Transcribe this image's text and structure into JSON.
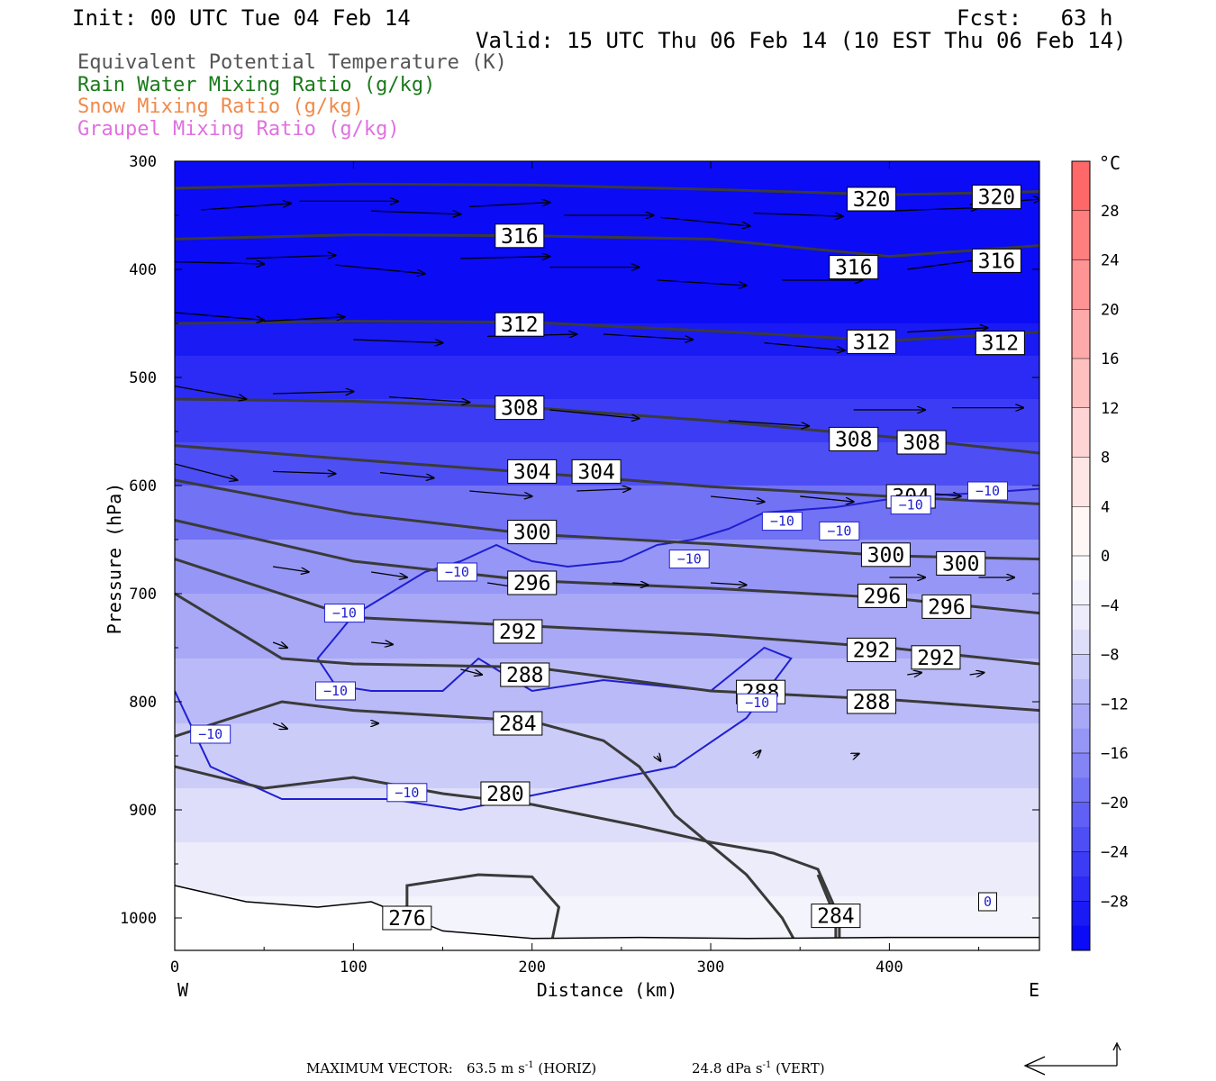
{
  "header": {
    "init": "Init: 00 UTC Tue 04 Feb 14",
    "fcst": "Fcst:   63 h",
    "valid": "Valid: 15 UTC Thu 06 Feb 14 (10 EST Thu 06 Feb 14)",
    "fields": [
      {
        "label": "Equivalent Potential Temperature (K)",
        "color": "#555555"
      },
      {
        "label": "Rain Water Mixing Ratio (g/kg)",
        "color": "#1a7a1a"
      },
      {
        "label": "Snow Mixing Ratio (g/kg)",
        "color": "#f08a4a"
      },
      {
        "label": "Graupel Mixing Ratio (g/kg)",
        "color": "#e070e0"
      }
    ]
  },
  "footer": {
    "max_vector_label": "MAXIMUM VECTOR:",
    "horiz_value": "63.5 m s",
    "horiz_unit": "(HORIZ)",
    "vert_value": "24.8 dPa s",
    "vert_unit": "(VERT)",
    "exponent": "-1"
  },
  "chart_data": {
    "type": "contour cross-section",
    "xlabel": "Distance (km)",
    "ylabel": "Pressure (hPa)",
    "x_range": [
      0,
      484
    ],
    "y_range": [
      300,
      1030
    ],
    "y_scale": "linear, inverted",
    "x_ticks": [
      0,
      100,
      200,
      300,
      400
    ],
    "y_ticks": [
      300,
      400,
      500,
      600,
      700,
      800,
      900,
      1000
    ],
    "x_end_labels": {
      "left": "W",
      "right": "E"
    },
    "colorbar": {
      "unit": "°C",
      "tick_labels": [
        "28",
        "24",
        "20",
        "16",
        "12",
        "8",
        "4",
        "0",
        "-4",
        "-8",
        "-12",
        "-16",
        "-20",
        "-24",
        "-28"
      ],
      "range": [
        -32,
        32
      ],
      "step": 4,
      "colors_neg": [
        "#0b0bf5",
        "#1a1af5",
        "#2b2bf5",
        "#3c3cf5",
        "#4e4ef5",
        "#6060f5",
        "#7272f5",
        "#8484f5",
        "#9696f6",
        "#a8a8f7",
        "#babaf8",
        "#ccccf9",
        "#dedefa",
        "#ececfb",
        "#f4f4fc",
        "#fbfbfe"
      ],
      "colors_pos": [
        "#fff6f6",
        "#ffe6e6",
        "#ffd4d4",
        "#ffc0c0",
        "#ffaaaa",
        "#ff9494",
        "#ff7e7e",
        "#ff6868",
        "#ff5252",
        "#ff3d3d",
        "#ff2a2a",
        "#ff1818"
      ]
    },
    "temperature_fill_levels": [
      {
        "p": 300,
        "t": -32
      },
      {
        "p": 410,
        "t": -31
      },
      {
        "p": 450,
        "t": -29
      },
      {
        "p": 480,
        "t": -27
      },
      {
        "p": 520,
        "t": -25
      },
      {
        "p": 560,
        "t": -23
      },
      {
        "p": 600,
        "t": -20
      },
      {
        "p": 650,
        "t": -16
      },
      {
        "p": 700,
        "t": -13
      },
      {
        "p": 760,
        "t": -11
      },
      {
        "p": 820,
        "t": -9
      },
      {
        "p": 880,
        "t": -7
      },
      {
        "p": 930,
        "t": -5
      },
      {
        "p": 980,
        "t": -3
      },
      {
        "p": 1030,
        "t": -1
      }
    ],
    "theta_e_contours": [
      {
        "level": 320,
        "points": [
          [
            0,
            325
          ],
          [
            100,
            321
          ],
          [
            200,
            322
          ],
          [
            300,
            326
          ],
          [
            400,
            331
          ],
          [
            484,
            328
          ]
        ],
        "labels": [
          [
            390,
            335
          ],
          [
            460,
            333
          ]
        ]
      },
      {
        "level": 316,
        "points": [
          [
            0,
            372
          ],
          [
            100,
            368
          ],
          [
            200,
            369
          ],
          [
            300,
            372
          ],
          [
            400,
            388
          ],
          [
            484,
            378
          ]
        ],
        "labels": [
          [
            193,
            369
          ],
          [
            380,
            398
          ],
          [
            460,
            392
          ]
        ]
      },
      {
        "level": 312,
        "points": [
          [
            0,
            450
          ],
          [
            100,
            448
          ],
          [
            200,
            449
          ],
          [
            300,
            457
          ],
          [
            400,
            466
          ],
          [
            484,
            458
          ]
        ],
        "labels": [
          [
            193,
            451
          ],
          [
            390,
            467
          ],
          [
            462,
            468
          ]
        ]
      },
      {
        "level": 308,
        "points": [
          [
            0,
            520
          ],
          [
            100,
            522
          ],
          [
            200,
            528
          ],
          [
            300,
            540
          ],
          [
            400,
            555
          ],
          [
            484,
            570
          ]
        ],
        "labels": [
          [
            193,
            528
          ],
          [
            380,
            557
          ],
          [
            418,
            560
          ]
        ]
      },
      {
        "level": 304,
        "points": [
          [
            0,
            563
          ],
          [
            100,
            576
          ],
          [
            200,
            588
          ],
          [
            300,
            601
          ],
          [
            400,
            610
          ],
          [
            484,
            617
          ]
        ],
        "labels": [
          [
            200,
            587
          ],
          [
            236,
            587
          ],
          [
            412,
            610
          ]
        ]
      },
      {
        "level": 300,
        "points": [
          [
            0,
            595
          ],
          [
            100,
            626
          ],
          [
            200,
            645
          ],
          [
            300,
            654
          ],
          [
            400,
            665
          ],
          [
            484,
            668
          ]
        ],
        "labels": [
          [
            200,
            643
          ],
          [
            398,
            664
          ],
          [
            440,
            672
          ]
        ]
      },
      {
        "level": 296,
        "points": [
          [
            0,
            632
          ],
          [
            100,
            670
          ],
          [
            200,
            688
          ],
          [
            300,
            695
          ],
          [
            400,
            704
          ],
          [
            484,
            718
          ]
        ],
        "labels": [
          [
            200,
            690
          ],
          [
            396,
            702
          ],
          [
            432,
            712
          ]
        ]
      },
      {
        "level": 292,
        "points": [
          [
            0,
            668
          ],
          [
            100,
            722
          ],
          [
            200,
            730
          ],
          [
            300,
            738
          ],
          [
            400,
            750
          ],
          [
            484,
            765
          ]
        ],
        "labels": [
          [
            192,
            735
          ],
          [
            390,
            752
          ],
          [
            426,
            759
          ]
        ]
      },
      {
        "level": 288,
        "points": [
          [
            0,
            700
          ],
          [
            60,
            760
          ],
          [
            100,
            765
          ],
          [
            200,
            768
          ],
          [
            300,
            790
          ],
          [
            400,
            798
          ],
          [
            484,
            808
          ]
        ],
        "labels": [
          [
            196,
            775
          ],
          [
            328,
            791
          ],
          [
            390,
            800
          ]
        ]
      },
      {
        "level": 284,
        "points": [
          [
            0,
            832
          ],
          [
            60,
            800
          ],
          [
            100,
            808
          ],
          [
            200,
            818
          ],
          [
            240,
            836
          ],
          [
            260,
            860
          ],
          [
            280,
            905
          ],
          [
            320,
            960
          ],
          [
            340,
            1000
          ],
          [
            350,
            1030
          ]
        ],
        "labels": [
          [
            192,
            820
          ]
        ]
      },
      {
        "level": 280,
        "points": [
          [
            0,
            860
          ],
          [
            50,
            880
          ],
          [
            100,
            870
          ],
          [
            150,
            885
          ],
          [
            200,
            895
          ],
          [
            260,
            915
          ],
          [
            300,
            930
          ],
          [
            335,
            940
          ],
          [
            360,
            955
          ],
          [
            372,
            1000
          ],
          [
            372,
            1030
          ]
        ],
        "labels": [
          [
            185,
            885
          ]
        ]
      },
      {
        "level": 284,
        "points": [
          [
            370,
            1030
          ],
          [
            370,
            1000
          ],
          [
            360,
            960
          ]
        ],
        "labels": [
          [
            370,
            998
          ]
        ]
      },
      {
        "level": 276,
        "points": [
          [
            130,
            1030
          ],
          [
            130,
            970
          ],
          [
            170,
            960
          ],
          [
            200,
            962
          ],
          [
            215,
            990
          ],
          [
            210,
            1030
          ]
        ],
        "labels": [
          [
            130,
            1000
          ]
        ]
      }
    ],
    "minus10_contour": [
      [
        0,
        790
      ],
      [
        20,
        860
      ],
      [
        60,
        890
      ],
      [
        120,
        890
      ],
      [
        160,
        900
      ],
      [
        220,
        880
      ],
      [
        280,
        860
      ],
      [
        320,
        815
      ],
      [
        345,
        760
      ],
      [
        330,
        750
      ],
      [
        300,
        790
      ],
      [
        240,
        780
      ],
      [
        200,
        790
      ],
      [
        170,
        760
      ],
      [
        150,
        790
      ],
      [
        110,
        790
      ],
      [
        90,
        785
      ],
      [
        80,
        760
      ],
      [
        100,
        720
      ],
      [
        120,
        700
      ],
      [
        140,
        680
      ],
      [
        160,
        670
      ],
      [
        180,
        655
      ],
      [
        200,
        670
      ],
      [
        220,
        675
      ],
      [
        250,
        670
      ],
      [
        270,
        655
      ],
      [
        290,
        650
      ],
      [
        310,
        640
      ],
      [
        330,
        625
      ],
      [
        370,
        620
      ],
      [
        410,
        610
      ],
      [
        450,
        607
      ],
      [
        484,
        603
      ]
    ],
    "minus10_labels": [
      [
        20,
        830
      ],
      [
        95,
        718
      ],
      [
        90,
        790
      ],
      [
        158,
        680
      ],
      [
        130,
        884
      ],
      [
        288,
        668
      ],
      [
        340,
        633
      ],
      [
        372,
        642
      ],
      [
        412,
        618
      ],
      [
        455,
        605
      ],
      [
        326,
        801
      ]
    ],
    "zero_label": [
      [
        455,
        985
      ]
    ],
    "surface_line": [
      [
        0,
        970
      ],
      [
        40,
        985
      ],
      [
        80,
        990
      ],
      [
        110,
        985
      ],
      [
        150,
        1012
      ],
      [
        200,
        1019
      ],
      [
        260,
        1018
      ],
      [
        320,
        1019
      ],
      [
        400,
        1018
      ],
      [
        484,
        1018
      ]
    ],
    "wind_vectors": [
      {
        "x": 15,
        "p": 345,
        "dx": 50,
        "dp": -6
      },
      {
        "x": 70,
        "p": 337,
        "dx": 55,
        "dp": 0
      },
      {
        "x": 110,
        "p": 346,
        "dx": 50,
        "dp": 3
      },
      {
        "x": 165,
        "p": 342,
        "dx": 45,
        "dp": -4
      },
      {
        "x": 218,
        "p": 350,
        "dx": 50,
        "dp": 0
      },
      {
        "x": 272,
        "p": 352,
        "dx": 50,
        "dp": 8
      },
      {
        "x": 324,
        "p": 348,
        "dx": 50,
        "dp": 3
      },
      {
        "x": 400,
        "p": 346,
        "dx": 50,
        "dp": -3
      },
      {
        "x": 445,
        "p": 340,
        "dx": 40,
        "dp": -5
      },
      {
        "x": 0,
        "p": 393,
        "dx": 50,
        "dp": 2
      },
      {
        "x": 40,
        "p": 390,
        "dx": 50,
        "dp": -3
      },
      {
        "x": 90,
        "p": 396,
        "dx": 50,
        "dp": 8
      },
      {
        "x": 160,
        "p": 390,
        "dx": 50,
        "dp": -2
      },
      {
        "x": 210,
        "p": 398,
        "dx": 50,
        "dp": 0
      },
      {
        "x": 270,
        "p": 410,
        "dx": 50,
        "dp": 5
      },
      {
        "x": 340,
        "p": 410,
        "dx": 45,
        "dp": 0
      },
      {
        "x": 410,
        "p": 400,
        "dx": 45,
        "dp": -10
      },
      {
        "x": 0,
        "p": 440,
        "dx": 50,
        "dp": 7
      },
      {
        "x": 50,
        "p": 448,
        "dx": 45,
        "dp": -4
      },
      {
        "x": 100,
        "p": 465,
        "dx": 50,
        "dp": 3
      },
      {
        "x": 175,
        "p": 462,
        "dx": 50,
        "dp": -2
      },
      {
        "x": 240,
        "p": 460,
        "dx": 50,
        "dp": 5
      },
      {
        "x": 330,
        "p": 468,
        "dx": 45,
        "dp": 7
      },
      {
        "x": 410,
        "p": 458,
        "dx": 45,
        "dp": -4
      },
      {
        "x": 0,
        "p": 508,
        "dx": 40,
        "dp": 12
      },
      {
        "x": 55,
        "p": 515,
        "dx": 45,
        "dp": -2
      },
      {
        "x": 120,
        "p": 518,
        "dx": 45,
        "dp": 5
      },
      {
        "x": 210,
        "p": 530,
        "dx": 50,
        "dp": 8
      },
      {
        "x": 310,
        "p": 540,
        "dx": 45,
        "dp": 5
      },
      {
        "x": 380,
        "p": 530,
        "dx": 40,
        "dp": 0
      },
      {
        "x": 435,
        "p": 528,
        "dx": 40,
        "dp": 0
      },
      {
        "x": 0,
        "p": 580,
        "dx": 35,
        "dp": 15
      },
      {
        "x": 55,
        "p": 587,
        "dx": 35,
        "dp": 2
      },
      {
        "x": 115,
        "p": 588,
        "dx": 30,
        "dp": 5
      },
      {
        "x": 165,
        "p": 605,
        "dx": 35,
        "dp": 5
      },
      {
        "x": 225,
        "p": 605,
        "dx": 30,
        "dp": -2
      },
      {
        "x": 300,
        "p": 610,
        "dx": 30,
        "dp": 5
      },
      {
        "x": 350,
        "p": 610,
        "dx": 30,
        "dp": 5
      },
      {
        "x": 410,
        "p": 605,
        "dx": 30,
        "dp": 5
      },
      {
        "x": 55,
        "p": 675,
        "dx": 20,
        "dp": 5
      },
      {
        "x": 110,
        "p": 680,
        "dx": 20,
        "dp": 5
      },
      {
        "x": 175,
        "p": 690,
        "dx": 20,
        "dp": 5
      },
      {
        "x": 245,
        "p": 690,
        "dx": 20,
        "dp": 2
      },
      {
        "x": 300,
        "p": 690,
        "dx": 20,
        "dp": 2
      },
      {
        "x": 400,
        "p": 685,
        "dx": 20,
        "dp": 0
      },
      {
        "x": 450,
        "p": 685,
        "dx": 20,
        "dp": 0
      },
      {
        "x": 55,
        "p": 745,
        "dx": 8,
        "dp": 5
      },
      {
        "x": 110,
        "p": 745,
        "dx": 12,
        "dp": 2
      },
      {
        "x": 160,
        "p": 770,
        "dx": 12,
        "dp": 5
      },
      {
        "x": 410,
        "p": 775,
        "dx": 8,
        "dp": -2
      },
      {
        "x": 445,
        "p": 775,
        "dx": 8,
        "dp": -2
      },
      {
        "x": 55,
        "p": 820,
        "dx": 8,
        "dp": 5
      },
      {
        "x": 110,
        "p": 820,
        "dx": 4,
        "dp": 0
      },
      {
        "x": 325,
        "p": 850,
        "dx": 3,
        "dp": -5
      },
      {
        "x": 380,
        "p": 850,
        "dx": 3,
        "dp": -2
      },
      {
        "x": 270,
        "p": 850,
        "dx": 2,
        "dp": 5
      }
    ]
  }
}
